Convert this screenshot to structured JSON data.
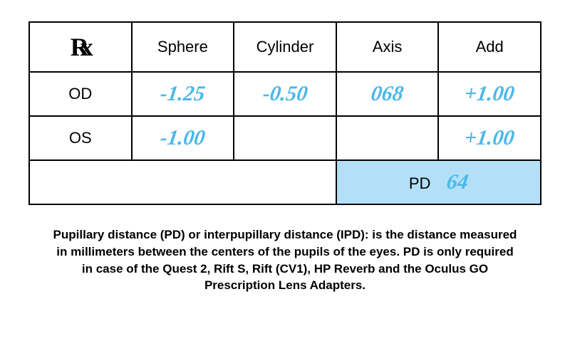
{
  "table": {
    "rx_symbol": "℞",
    "headers": {
      "sphere": "Sphere",
      "cylinder": "Cylinder",
      "axis": "Axis",
      "add": "Add"
    },
    "rows": {
      "od": {
        "label": "OD",
        "sphere": "-1.25",
        "cylinder": "-0.50",
        "axis": "068",
        "add": "+1.00"
      },
      "os": {
        "label": "OS",
        "sphere": "-1.00",
        "cylinder": "",
        "axis": "",
        "add": "+1.00"
      }
    },
    "pd": {
      "label": "PD",
      "value": "64"
    }
  },
  "description": "Pupillary distance (PD) or interpupillary distance (IPD): is the distance measured in millimeters between the centers of the pupils of the eyes. PD is only required in case of the Quest 2, Rift S, Rift (CV1), HP Reverb and the Oculus GO Prescription Lens Adapters.",
  "styles": {
    "handwritten_color": "#4db8e8",
    "pd_background": "#b3e0f7",
    "border_color": "#000000",
    "header_fontsize": 22,
    "value_fontsize": 30,
    "description_fontsize": 17
  }
}
